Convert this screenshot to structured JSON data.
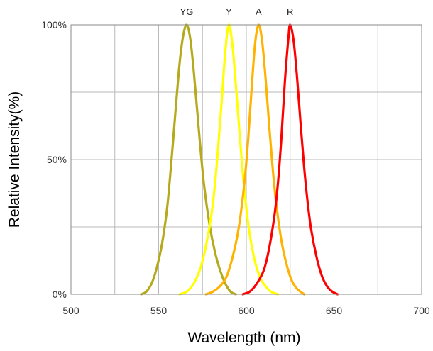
{
  "chart_data": {
    "type": "line",
    "title": "",
    "xlabel": "Wavelength  (nm)",
    "ylabel": "Relative Intensity(%)",
    "xlim": [
      500,
      700
    ],
    "ylim": [
      0,
      100
    ],
    "x_ticks": [
      500,
      550,
      600,
      650,
      700
    ],
    "x_tick_labels": [
      "500",
      "550",
      "600",
      "650",
      "700"
    ],
    "x_minor_grid": [
      525,
      575,
      625,
      675
    ],
    "y_ticks": [
      0,
      50,
      100
    ],
    "y_tick_labels": [
      "0%",
      "50%",
      "100%"
    ],
    "y_minor_grid": [
      25,
      75
    ],
    "grid": true,
    "legend": "labels above peaks",
    "series": [
      {
        "name": "YG",
        "color": "#b5aa1c",
        "peak": 566,
        "x": [
          540,
          543,
          546,
          549,
          552,
          555,
          558,
          560,
          562,
          564,
          566,
          568,
          570,
          572,
          574,
          576,
          579,
          582,
          585,
          588,
          591,
          594
        ],
        "y": [
          0,
          1,
          4,
          10,
          19,
          33,
          55,
          71,
          86,
          96,
          100,
          95,
          83,
          68,
          53,
          40,
          26,
          16,
          9,
          4,
          1,
          0
        ]
      },
      {
        "name": "Y",
        "color": "#ffff00",
        "peak": 590,
        "x": [
          562,
          566,
          570,
          574,
          577,
          580,
          582,
          584,
          586,
          588,
          590,
          592,
          594,
          596,
          598,
          600,
          602,
          605,
          608,
          611,
          614,
          618
        ],
        "y": [
          0,
          1,
          4,
          10,
          18,
          29,
          40,
          55,
          72,
          90,
          100,
          93,
          78,
          61,
          45,
          32,
          22,
          12,
          6,
          3,
          1,
          0
        ]
      },
      {
        "name": "A",
        "color": "#ffb300",
        "peak": 607,
        "x": [
          577,
          581,
          585,
          589,
          593,
          596,
          599,
          601,
          603,
          605,
          607,
          609,
          611,
          613,
          615,
          617,
          620,
          623,
          626,
          629,
          633
        ],
        "y": [
          0,
          1,
          3,
          7,
          16,
          26,
          42,
          57,
          76,
          93,
          100,
          94,
          80,
          63,
          47,
          34,
          20,
          11,
          5,
          2,
          0
        ]
      },
      {
        "name": "R",
        "color": "#ff0000",
        "peak": 625,
        "x": [
          598,
          602,
          606,
          610,
          613,
          616,
          618,
          620,
          622,
          624,
          625,
          627,
          629,
          631,
          633,
          635,
          637,
          640,
          643,
          646,
          649,
          652
        ],
        "y": [
          0,
          1,
          4,
          9,
          17,
          29,
          41,
          58,
          79,
          95,
          100,
          94,
          80,
          63,
          47,
          34,
          24,
          14,
          7,
          3,
          1,
          0
        ]
      }
    ]
  }
}
